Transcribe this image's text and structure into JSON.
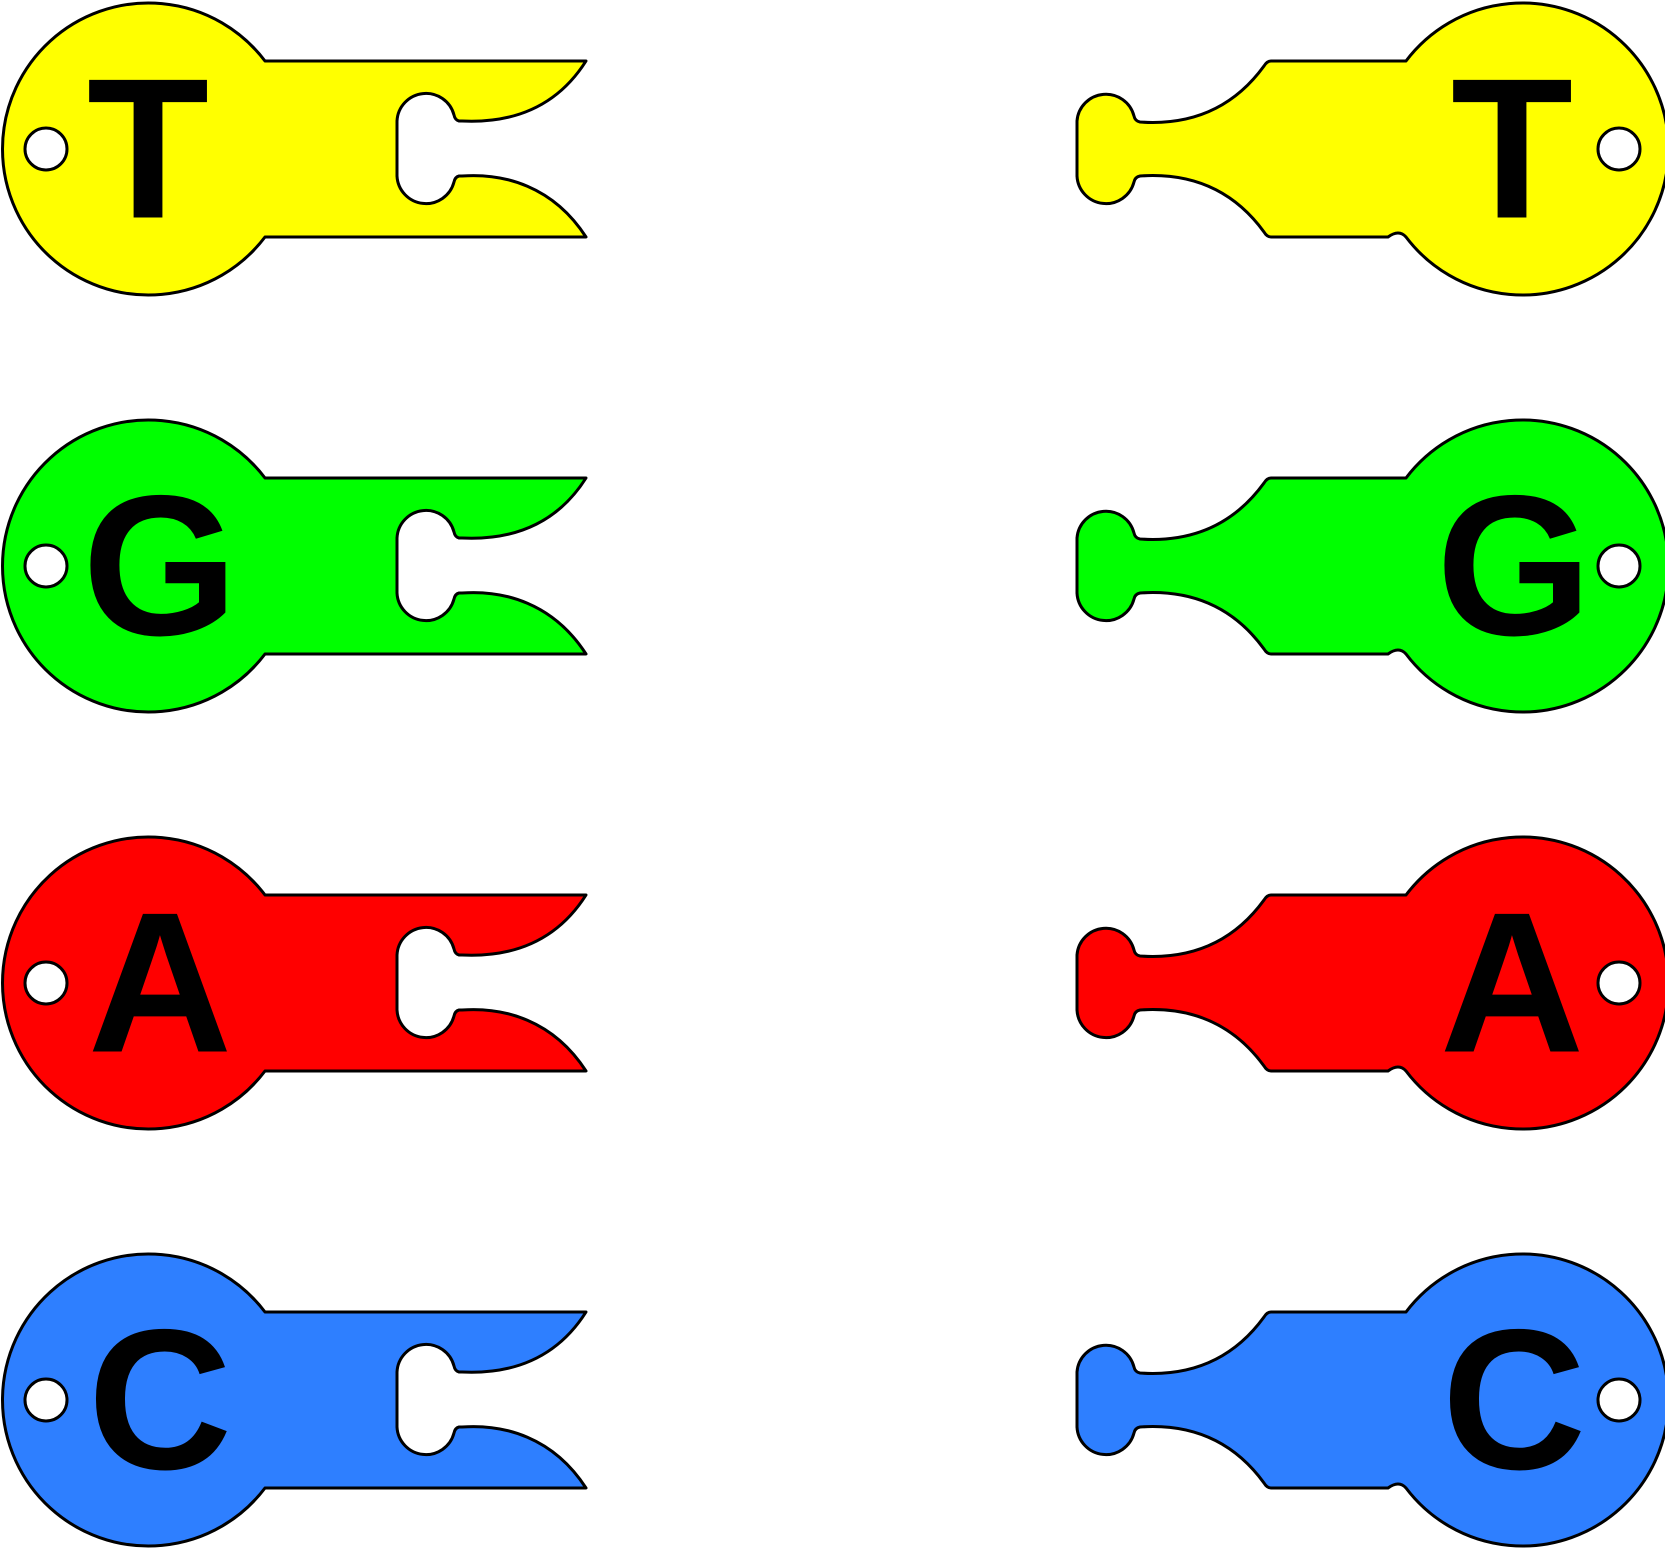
{
  "rows": [
    {
      "base": "T",
      "color": "#ffff00"
    },
    {
      "base": "G",
      "color": "#00ff00"
    },
    {
      "base": "A",
      "color": "#ff0000"
    },
    {
      "base": "C",
      "color": "#2e7fff"
    }
  ],
  "left_piece_icon": "fork-tab-key-icon",
  "right_piece_icon": "peg-tab-key-icon"
}
